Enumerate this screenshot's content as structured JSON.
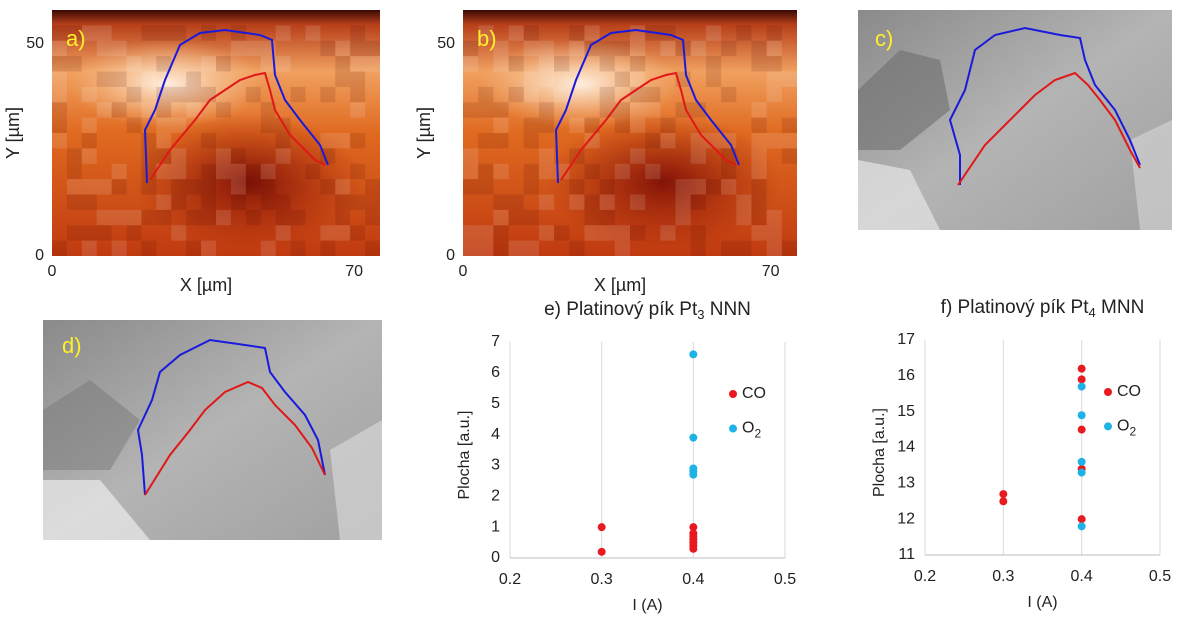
{
  "chart_data": [
    {
      "type": "heatmap",
      "panel_label": "a)",
      "xlabel": "X [µm]",
      "ylabel": "Y [µm]",
      "xlim": [
        0,
        76
      ],
      "ylim": [
        0,
        58
      ],
      "xticks": [
        0,
        70
      ],
      "yticks": [
        0,
        50
      ]
    },
    {
      "type": "heatmap",
      "panel_label": "b)",
      "xlabel": "X [µm]",
      "ylabel": "Y [µm]",
      "xlim": [
        0,
        76
      ],
      "ylim": [
        0,
        58
      ],
      "xticks": [
        0,
        70
      ],
      "yticks": [
        0,
        50
      ]
    },
    {
      "type": "scatter",
      "title_parts": [
        "e)  Platinový pík Pt",
        "3",
        " NNN"
      ],
      "xlabel": "I (A)",
      "ylabel": "Plocha [a.u.]",
      "xlim": [
        0.2,
        0.5
      ],
      "ylim": [
        0,
        7
      ],
      "xticks": [
        0.2,
        0.3,
        0.4,
        0.5
      ],
      "yticks": [
        0,
        1,
        2,
        3,
        4,
        5,
        6,
        7
      ],
      "grid": "x",
      "series": [
        {
          "name": [
            "CO"
          ],
          "color": "#e8191f",
          "x": [
            0.3,
            0.3,
            0.4,
            0.4,
            0.4,
            0.4,
            0.4,
            0.4,
            0.4
          ],
          "values": [
            1.0,
            0.2,
            1.0,
            0.8,
            0.7,
            0.6,
            0.5,
            0.4,
            0.3
          ]
        },
        {
          "name": [
            "O",
            "2"
          ],
          "color": "#1fb2e6",
          "x": [
            0.4,
            0.4,
            0.4,
            0.4,
            0.4
          ],
          "values": [
            6.6,
            3.9,
            2.9,
            2.8,
            2.7
          ]
        }
      ]
    },
    {
      "type": "scatter",
      "title_parts": [
        "f)  Platinový pík Pt",
        "4",
        " MNN"
      ],
      "xlabel": "I (A)",
      "ylabel": "Plocha [a.u.]",
      "xlim": [
        0.2,
        0.5
      ],
      "ylim": [
        11,
        17
      ],
      "xticks": [
        0.2,
        0.3,
        0.4,
        0.5
      ],
      "yticks": [
        11,
        12,
        13,
        14,
        15,
        16,
        17
      ],
      "grid": "x",
      "series": [
        {
          "name": [
            "CO"
          ],
          "color": "#e8191f",
          "x": [
            0.3,
            0.3,
            0.4,
            0.4,
            0.4,
            0.4,
            0.4
          ],
          "values": [
            12.7,
            12.5,
            16.2,
            15.9,
            14.5,
            13.4,
            12.0
          ]
        },
        {
          "name": [
            "O",
            "2"
          ],
          "color": "#1fb2e6",
          "x": [
            0.4,
            0.4,
            0.4,
            0.4,
            0.4
          ],
          "values": [
            15.7,
            14.9,
            13.6,
            13.3,
            11.8
          ]
        }
      ]
    }
  ],
  "micrographs": [
    {
      "label": "c)"
    },
    {
      "label": "d)"
    }
  ]
}
